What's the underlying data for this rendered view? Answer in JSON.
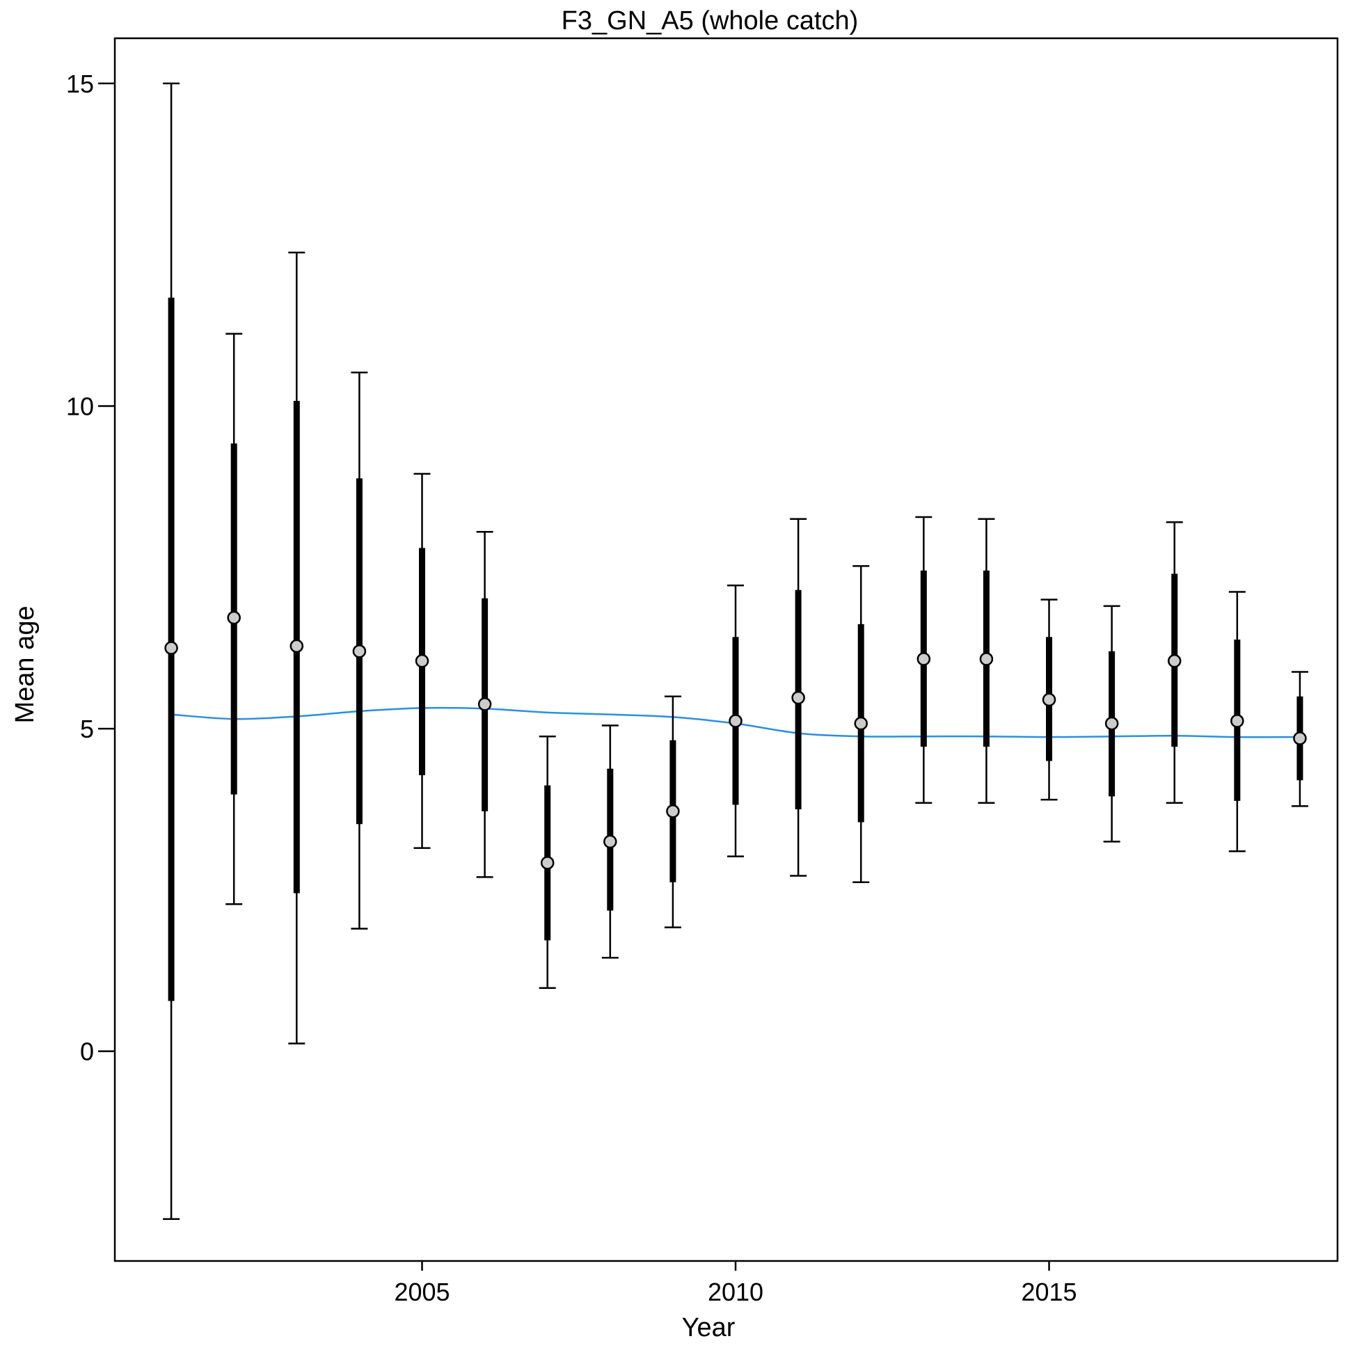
{
  "chart_data": {
    "type": "scatter",
    "title": "F3_GN_A5 (whole catch)",
    "xlabel": "Year",
    "ylabel": "Mean age",
    "xlim": [
      2000.1,
      2019.6
    ],
    "ylim": [
      -3.25,
      15.7
    ],
    "x_ticks": [
      2005,
      2010,
      2015
    ],
    "y_ticks": [
      0,
      5,
      10,
      15
    ],
    "grid": false,
    "colors": {
      "points_fill": "#cccccc",
      "points_stroke": "#000000",
      "error_bars": "#000000",
      "smoother": "#2a8fe0"
    },
    "series": [
      {
        "kind": "points_with_error_bars",
        "x": [
          2001,
          2002,
          2003,
          2004,
          2005,
          2006,
          2007,
          2008,
          2009,
          2010,
          2011,
          2012,
          2013,
          2014,
          2015,
          2016,
          2017,
          2018,
          2019
        ],
        "y": [
          6.25,
          6.72,
          6.28,
          6.2,
          6.05,
          5.38,
          2.92,
          3.25,
          3.72,
          5.12,
          5.48,
          5.08,
          6.08,
          6.08,
          5.45,
          5.08,
          6.05,
          5.12,
          4.85
        ],
        "inner_low": [
          0.78,
          3.98,
          2.45,
          3.52,
          4.28,
          3.72,
          1.72,
          2.18,
          2.62,
          3.82,
          3.75,
          3.55,
          4.72,
          4.72,
          4.5,
          3.95,
          4.72,
          3.88,
          4.2
        ],
        "inner_high": [
          11.68,
          9.42,
          10.08,
          8.88,
          7.8,
          7.02,
          4.12,
          4.38,
          4.82,
          6.42,
          7.15,
          6.62,
          7.45,
          7.45,
          6.42,
          6.2,
          7.4,
          6.38,
          5.5
        ],
        "outer_low": [
          -2.6,
          2.28,
          0.12,
          1.9,
          3.15,
          2.7,
          0.98,
          1.45,
          1.92,
          3.02,
          2.72,
          2.62,
          3.85,
          3.85,
          3.9,
          3.25,
          3.85,
          3.1,
          3.8
        ],
        "outer_high": [
          15.0,
          11.12,
          12.38,
          10.52,
          8.95,
          8.05,
          4.88,
          5.05,
          5.5,
          7.22,
          8.25,
          7.52,
          8.28,
          8.25,
          7.0,
          6.9,
          8.2,
          7.12,
          5.88
        ]
      },
      {
        "kind": "smoother",
        "x": [
          2001,
          2002,
          2003,
          2004,
          2005,
          2006,
          2007,
          2008,
          2009,
          2010,
          2011,
          2012,
          2013,
          2014,
          2015,
          2016,
          2017,
          2018,
          2019
        ],
        "y": [
          5.22,
          5.15,
          5.19,
          5.27,
          5.32,
          5.31,
          5.25,
          5.22,
          5.18,
          5.08,
          4.93,
          4.88,
          4.88,
          4.88,
          4.87,
          4.88,
          4.89,
          4.87,
          4.87
        ]
      }
    ]
  }
}
